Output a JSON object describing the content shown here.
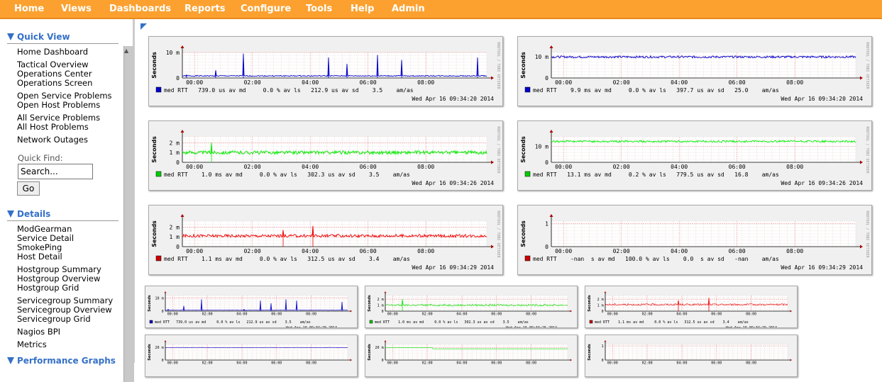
{
  "topnav": {
    "items": [
      "Home",
      "Views",
      "Dashboards",
      "Reports",
      "Configure",
      "Tools",
      "Help",
      "Admin"
    ]
  },
  "sidebar": {
    "quick_view": {
      "title": "Quick View",
      "links": [
        "Home Dashboard",
        "Tactical Overview",
        "Operations Center",
        "Operations Screen",
        "Open Service Problems",
        "Open Host Problems",
        "All Service Problems",
        "All Host Problems",
        "Network Outages"
      ],
      "quick_find_label": "Quick Find:",
      "search_value": "Search...",
      "go_label": "Go"
    },
    "details": {
      "title": "Details",
      "links": [
        "ModGearman",
        "Service Detail",
        "SmokePing",
        "Host Detail",
        "Hostgroup Summary",
        "Hostgroup Overview",
        "Hostgroup Grid",
        "Servicegroup Summary",
        "Servicegroup Overview",
        "Servicegroup Grid",
        "Nagios BPI",
        "Metrics"
      ]
    },
    "performance": {
      "title": "Performance Graphs"
    }
  },
  "graphs": {
    "x_ticks": [
      "00:00",
      "02:00",
      "04:00",
      "06:00",
      "08:00"
    ],
    "ylabel": "Seconds",
    "side_text": "RRDTOOL / TOBI OETIKER",
    "large": [
      {
        "color": "#0000cc",
        "legend_color": "#0000cc",
        "y_ticks": [
          "10 m",
          "0"
        ],
        "y_max": 10,
        "baseline": 0.8,
        "noise": 0.2,
        "spikes": [
          [
            0.015,
            1.2
          ],
          [
            0.11,
            3
          ],
          [
            0.2,
            9.5
          ],
          [
            0.48,
            8
          ],
          [
            0.54,
            5.5
          ],
          [
            0.64,
            9
          ],
          [
            0.72,
            7
          ],
          [
            0.97,
            8
          ]
        ],
        "legend": "med RTT   739.0 us av md     0.0 % av ls   212.9 us av sd    3.5    am/as",
        "timestamp": "Wed Apr 16 09:34:20 2014"
      },
      {
        "color": "#0000cc",
        "legend_color": "#0000cc",
        "y_ticks": [
          "10 m",
          "0"
        ],
        "y_max": 12,
        "baseline": 9.9,
        "noise": 0.5,
        "spikes": [],
        "legend": "med RTT    9.9 ms av md     0.0 % av ls   397.7 us av sd   25.0    am/as",
        "timestamp": "Wed Apr 16 09:34:20 2014"
      },
      {
        "color": "#00ee00",
        "legend_color": "#00cc00",
        "y_ticks": [
          "2 m",
          "1 m",
          "0"
        ],
        "y_max": 2.6,
        "baseline": 1.0,
        "noise": 0.18,
        "spikes": [
          [
            0.095,
            2.0
          ]
        ],
        "legend": "med RTT    1.0 ms av md     0.0 % av ls   302.3 us av sd    3.5    am/as",
        "timestamp": "Wed Apr 16 09:34:26 2014"
      },
      {
        "color": "#00ee00",
        "legend_color": "#00cc00",
        "y_ticks": [
          "10 m",
          "0"
        ],
        "y_max": 16,
        "baseline": 13.1,
        "noise": 0.6,
        "spikes": [],
        "legend": "med RTT   13.1 ms av md     0.2 % av ls   779.5 us av sd   16.8    am/as",
        "timestamp": "Wed Apr 16 09:34:26 2014"
      },
      {
        "color": "#ee0000",
        "legend_color": "#cc0000",
        "y_ticks": [
          "2 m",
          "1 m",
          "0"
        ],
        "y_max": 2.6,
        "baseline": 1.1,
        "noise": 0.15,
        "spikes": [
          [
            0.33,
            1.7
          ],
          [
            0.43,
            2.1
          ]
        ],
        "legend": "med RTT    1.1 ms av md     0.0 % av ls   312.5 us av sd    3.4    am/as",
        "timestamp": "Wed Apr 16 09:34:29 2014"
      },
      {
        "color": "#ee0000",
        "legend_color": "#cc0000",
        "y_ticks": [
          "1",
          "0"
        ],
        "y_max": 1.1,
        "baseline": null,
        "noise": 0,
        "spikes": [],
        "legend": "med RTT    -nan  s av md   100.0 % av ls    0.0  s av sd   -nan    am/as",
        "timestamp": "Wed Apr 16 09:34:29 2014"
      }
    ],
    "small": [
      {
        "color": "#0000cc",
        "legend_color": "#0000cc",
        "y_ticks": [
          "10 m",
          "0"
        ],
        "y_max": 12,
        "baseline": 0.8,
        "noise": 0.2,
        "spikes": [
          [
            0.015,
            1.5
          ],
          [
            0.1,
            4
          ],
          [
            0.2,
            9
          ],
          [
            0.43,
            1.5
          ],
          [
            0.52,
            8
          ],
          [
            0.58,
            6
          ],
          [
            0.66,
            9
          ],
          [
            0.72,
            8
          ],
          [
            0.97,
            7
          ]
        ],
        "legend": "med RTT   739.0 us av md     0.0 % av ls   212.9 us av sd    3.5    am/as",
        "timestamp": "Wed Apr 16 09:34:20 2014"
      },
      {
        "color": "#00ee00",
        "legend_color": "#00cc00",
        "y_ticks": [
          "2 m",
          "1 m",
          "0"
        ],
        "y_max": 2.6,
        "baseline": 1.0,
        "noise": 0.18,
        "spikes": [
          [
            0.095,
            2.0
          ]
        ],
        "legend": "med RTT    1.0 ms av md     0.0 % av ls   302.3 us av sd    3.5    am/as",
        "timestamp": "Wed Apr 16 09:34:26 2014"
      },
      {
        "color": "#ee0000",
        "legend_color": "#cc0000",
        "y_ticks": [
          "2 m",
          "1 m",
          "0"
        ],
        "y_max": 2.6,
        "baseline": 1.1,
        "noise": 0.15,
        "spikes": [
          [
            0.4,
            1.8
          ],
          [
            0.57,
            2.2
          ]
        ],
        "legend": "med RTT    1.1 ms av md     0.0 % av ls   312.5 us av sd    3.4    am/as",
        "timestamp": "Wed Apr 16 09:34:29 2014"
      },
      {
        "color": "#0000cc",
        "legend_color": "#0000cc",
        "y_ticks": [
          "20 m",
          "0"
        ],
        "y_max": 25,
        "baseline": 20,
        "noise": 0.3,
        "spikes": [],
        "legend": "",
        "timestamp": ""
      },
      {
        "color": "#00ee00",
        "legend_color": "#00cc00",
        "y_ticks": [
          "20 m",
          "0"
        ],
        "y_max": 25,
        "baseline": 20,
        "noise": 0,
        "step": [
          0.26,
          15,
          20
        ],
        "spikes": [],
        "legend": "",
        "timestamp": ""
      },
      {
        "color": "#ee0000",
        "legend_color": "#cc0000",
        "y_ticks": [
          "1",
          "0"
        ],
        "y_max": 1.1,
        "baseline": null,
        "noise": 0,
        "spikes": [],
        "legend": "",
        "timestamp": ""
      }
    ]
  }
}
